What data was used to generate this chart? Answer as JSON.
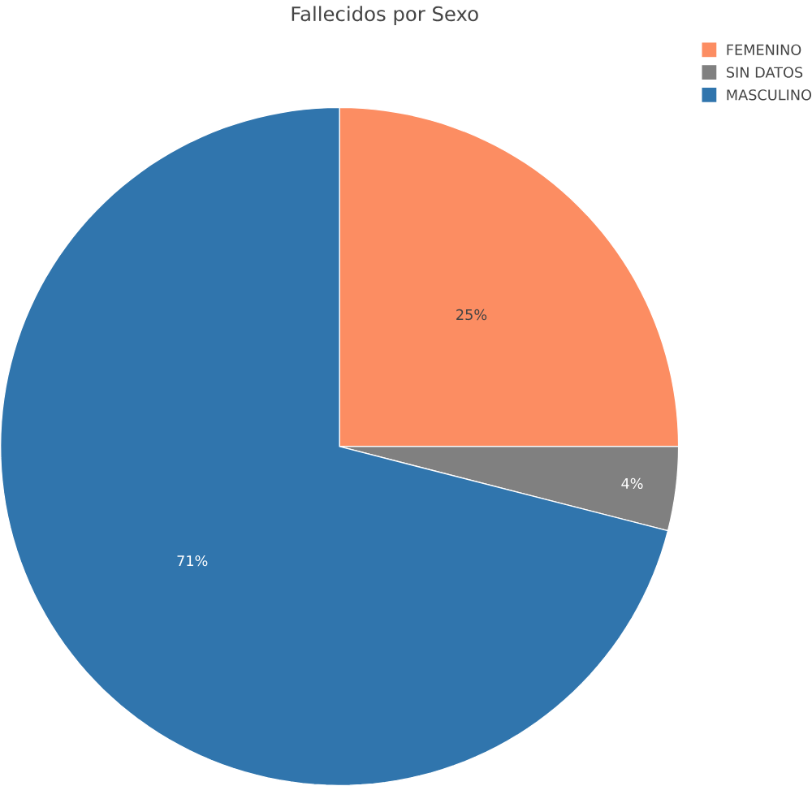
{
  "chart_data": {
    "type": "pie",
    "title": "Fallecidos por Sexo",
    "categories": [
      "FEMENINO",
      "SIN DATOS",
      "MASCULINO"
    ],
    "values": [
      25,
      4,
      71
    ],
    "colors": [
      "#fc8d62",
      "#808080",
      "#3075ad"
    ],
    "value_labels": [
      "25%",
      "4%",
      "71%"
    ],
    "legend": "top right"
  }
}
